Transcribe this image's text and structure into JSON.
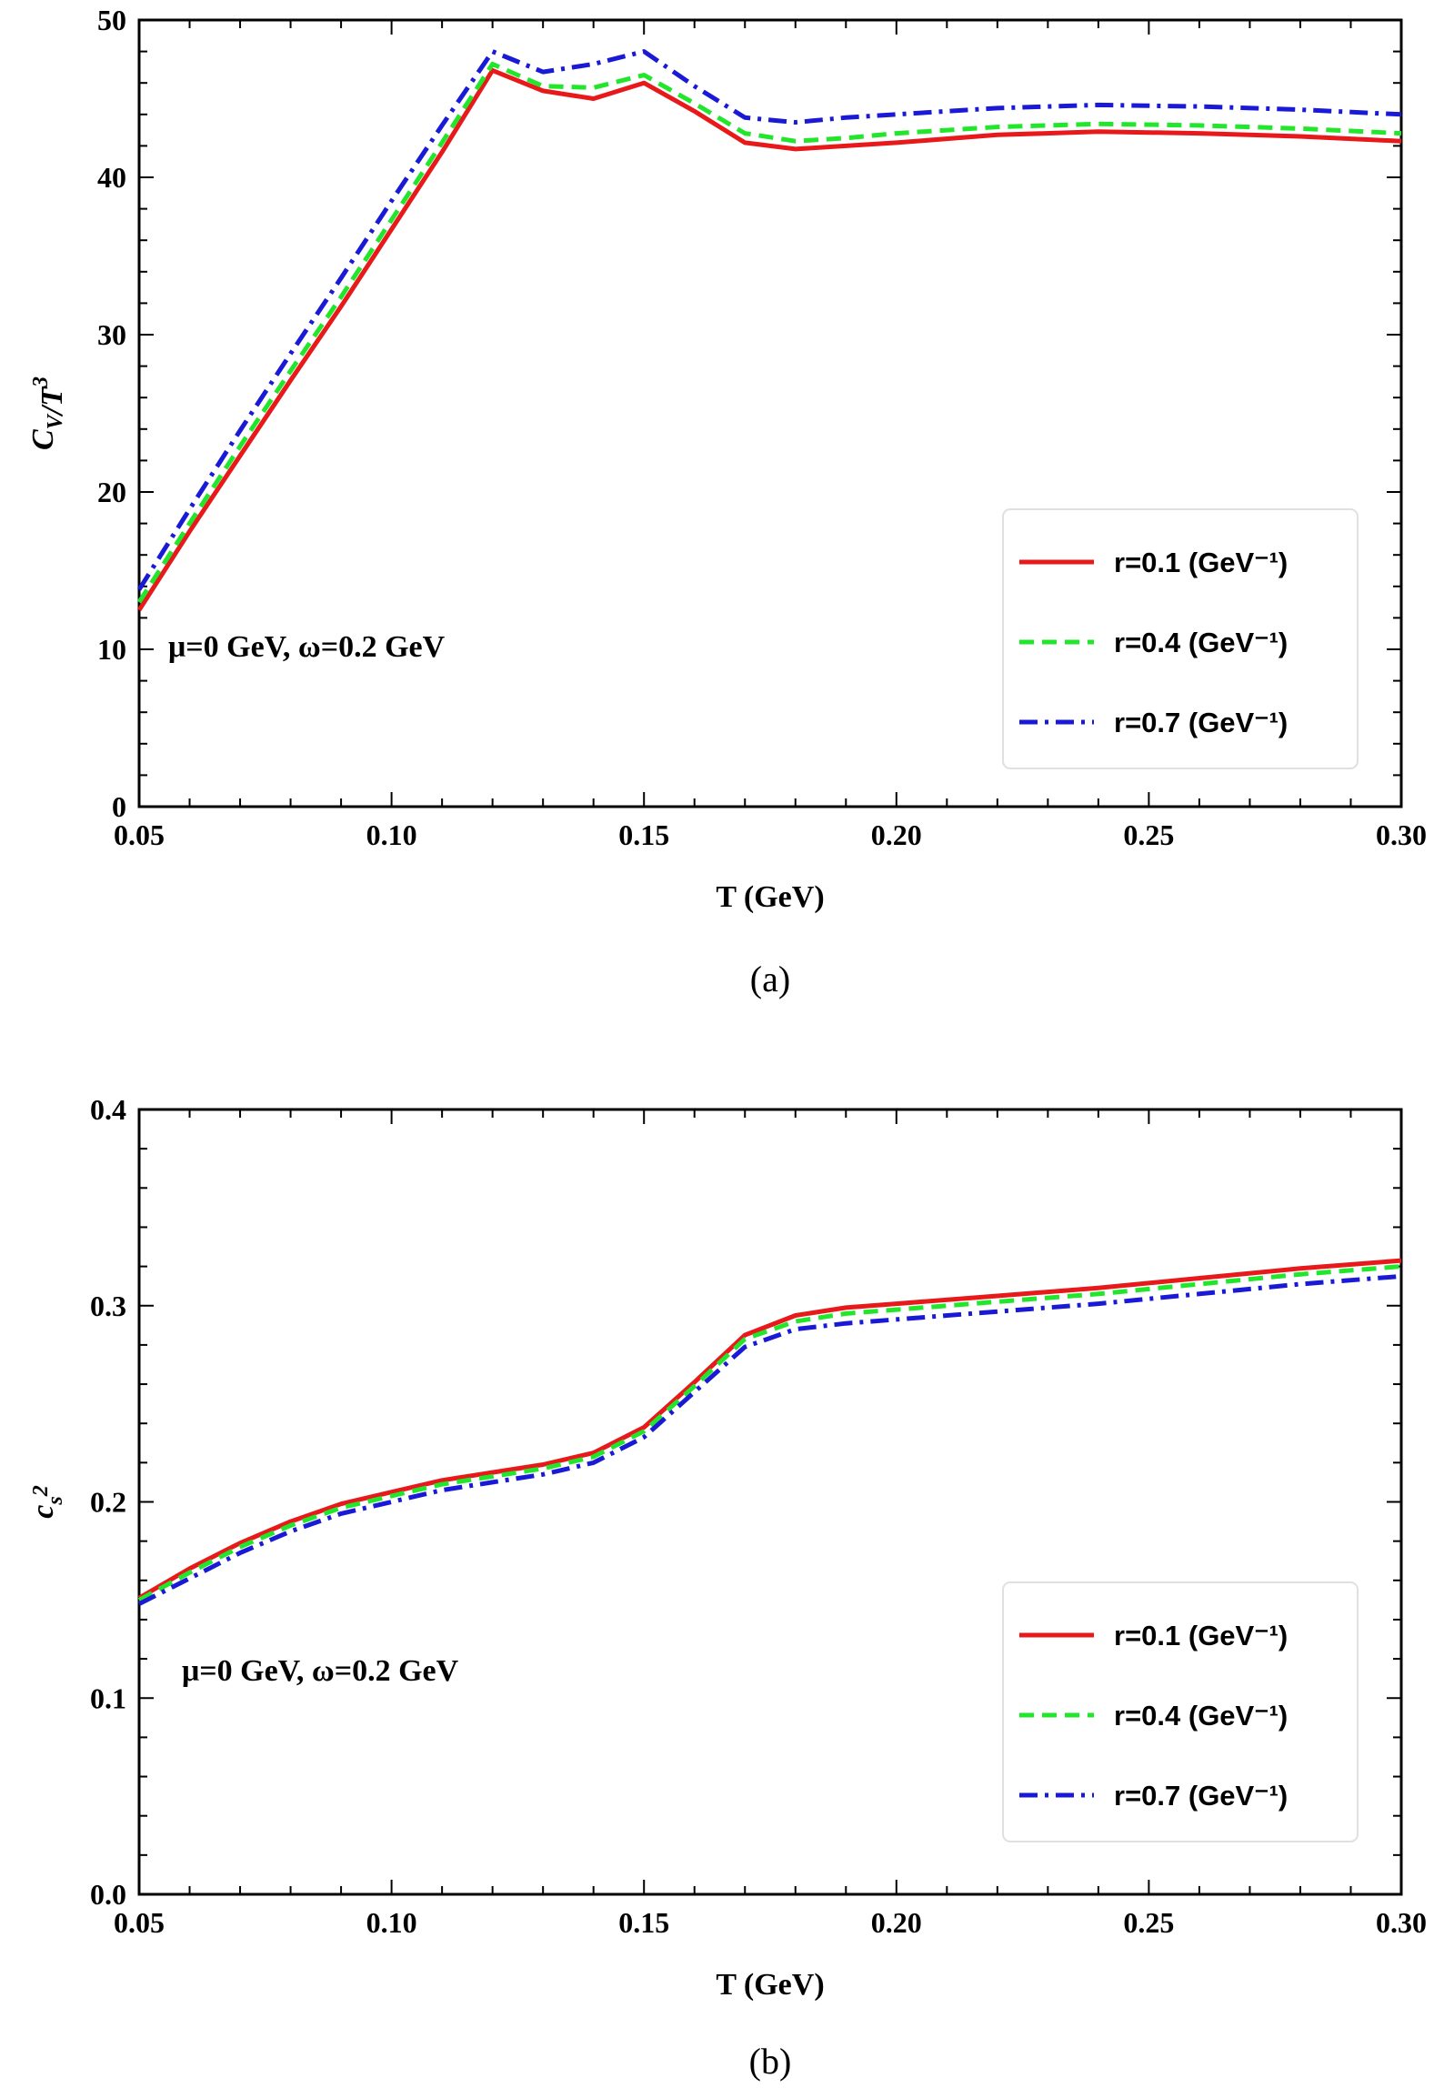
{
  "chart_data": [
    {
      "type": "line",
      "panel_label": "(a)",
      "xlabel": "T (GeV)",
      "ylabel": {
        "base": "C",
        "sub": "V",
        "rest": "/T",
        "sup": "3"
      },
      "xlim": [
        0.05,
        0.3
      ],
      "ylim": [
        0,
        50
      ],
      "xticks": [
        "0.05",
        "0.10",
        "0.15",
        "0.20",
        "0.25",
        "0.30"
      ],
      "yticks": [
        "0",
        "10",
        "20",
        "30",
        "40",
        "50"
      ],
      "annotation": "μ=0 GeV, ω=0.2 GeV",
      "legend_position": "right-middle",
      "x": [
        0.05,
        0.06,
        0.07,
        0.08,
        0.09,
        0.1,
        0.11,
        0.12,
        0.13,
        0.14,
        0.15,
        0.16,
        0.17,
        0.18,
        0.19,
        0.2,
        0.22,
        0.24,
        0.26,
        0.28,
        0.3
      ],
      "series": [
        {
          "name": "r=0.1 (GeV⁻¹)",
          "color": "#e8191a",
          "style": "solid",
          "values": [
            12.5,
            17.5,
            22.3,
            27.1,
            31.8,
            36.7,
            41.6,
            46.8,
            45.5,
            45.0,
            46.0,
            44.2,
            42.2,
            41.8,
            42.0,
            42.2,
            42.7,
            42.9,
            42.8,
            42.6,
            42.3
          ]
        },
        {
          "name": "r=0.4 (GeV⁻¹)",
          "color": "#21e62b",
          "style": "dashed",
          "values": [
            13.0,
            18.0,
            22.9,
            27.7,
            32.4,
            37.3,
            42.2,
            47.2,
            45.8,
            45.7,
            46.5,
            44.7,
            42.8,
            42.3,
            42.5,
            42.8,
            43.2,
            43.4,
            43.3,
            43.1,
            42.8
          ]
        },
        {
          "name": "r=0.7 (GeV⁻¹)",
          "color": "#1a1ad6",
          "style": "dashdot",
          "values": [
            13.8,
            18.9,
            23.9,
            28.8,
            33.6,
            38.5,
            43.3,
            48.0,
            46.7,
            47.2,
            48.0,
            45.8,
            43.8,
            43.5,
            43.8,
            44.0,
            44.4,
            44.6,
            44.5,
            44.3,
            44.0
          ]
        }
      ]
    },
    {
      "type": "line",
      "panel_label": "(b)",
      "xlabel": "T (GeV)",
      "ylabel": {
        "base": "c",
        "sub": "s",
        "rest": "",
        "sup": "2"
      },
      "xlim": [
        0.05,
        0.3
      ],
      "ylim": [
        0.0,
        0.4
      ],
      "xticks": [
        "0.05",
        "0.10",
        "0.15",
        "0.20",
        "0.25",
        "0.30"
      ],
      "yticks": [
        "0.0",
        "0.1",
        "0.2",
        "0.3",
        "0.4"
      ],
      "annotation": "μ=0 GeV, ω=0.2 GeV",
      "legend_position": "bottom-right",
      "x": [
        0.05,
        0.06,
        0.07,
        0.08,
        0.09,
        0.1,
        0.11,
        0.12,
        0.13,
        0.14,
        0.15,
        0.16,
        0.17,
        0.18,
        0.19,
        0.2,
        0.22,
        0.24,
        0.26,
        0.28,
        0.3
      ],
      "series": [
        {
          "name": "r=0.1 (GeV⁻¹)",
          "color": "#e8191a",
          "style": "solid",
          "values": [
            0.151,
            0.166,
            0.179,
            0.19,
            0.199,
            0.205,
            0.211,
            0.215,
            0.219,
            0.225,
            0.238,
            0.261,
            0.285,
            0.295,
            0.299,
            0.301,
            0.305,
            0.309,
            0.314,
            0.319,
            0.323
          ]
        },
        {
          "name": "r=0.4 (GeV⁻¹)",
          "color": "#21e62b",
          "style": "dashed",
          "values": [
            0.15,
            0.164,
            0.177,
            0.188,
            0.197,
            0.203,
            0.209,
            0.213,
            0.217,
            0.223,
            0.236,
            0.259,
            0.283,
            0.292,
            0.296,
            0.298,
            0.302,
            0.306,
            0.311,
            0.316,
            0.32
          ]
        },
        {
          "name": "r=0.7 (GeV⁻¹)",
          "color": "#1a1ad6",
          "style": "dashdot",
          "values": [
            0.148,
            0.161,
            0.174,
            0.185,
            0.194,
            0.2,
            0.206,
            0.21,
            0.214,
            0.22,
            0.233,
            0.256,
            0.279,
            0.288,
            0.291,
            0.293,
            0.297,
            0.301,
            0.306,
            0.311,
            0.315
          ]
        }
      ]
    }
  ]
}
